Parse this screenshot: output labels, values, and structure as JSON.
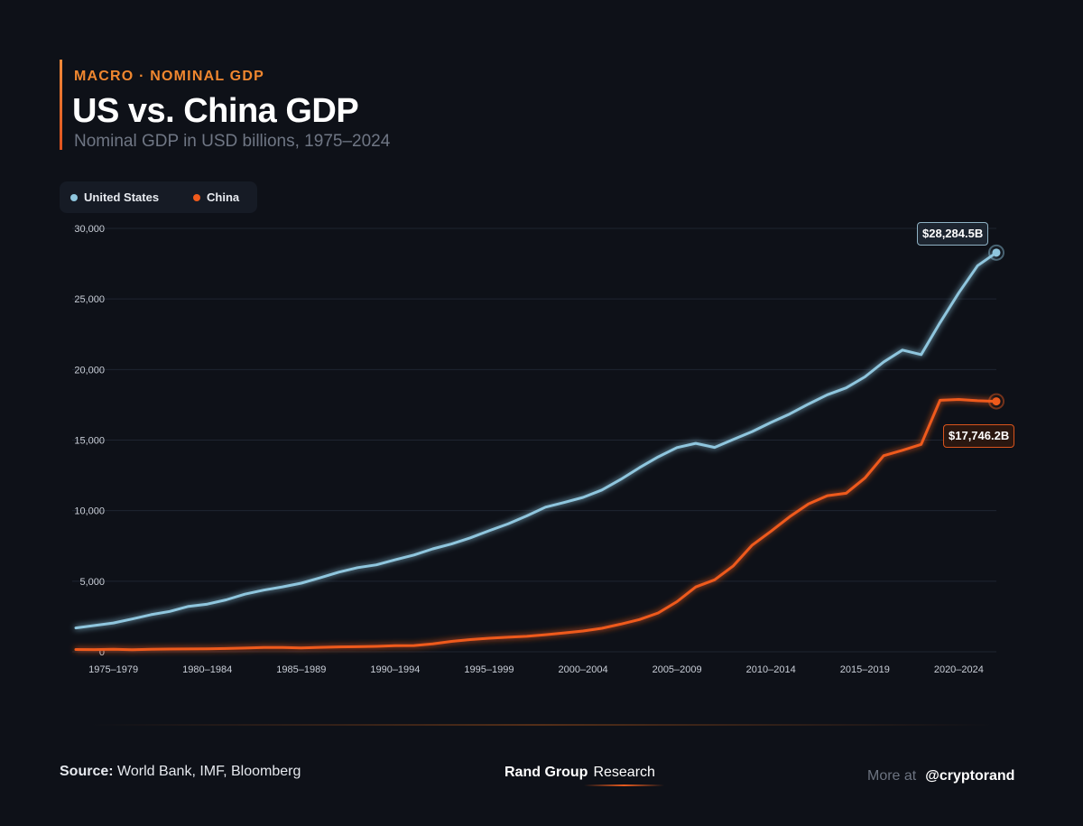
{
  "header": {
    "kicker": "MACRO · NOMINAL GDP",
    "title": "US vs. China GDP",
    "subtitle": "Nominal GDP in USD billions, 1975–2024"
  },
  "legend": {
    "us_label": "United States",
    "cn_label": "China",
    "us_color": "#8fc6de",
    "cn_color": "#ef5a1c"
  },
  "annotations": {
    "us_last": "$28,284.5B",
    "cn_last": "$17,746.2B"
  },
  "footer": {
    "source_label": "Source:",
    "source_text": "World Bank, IMF, Bloomberg",
    "brand_main": "Rand Group",
    "brand_sub": "Research",
    "more_label": "More at",
    "more_handle": "@cryptorand"
  },
  "chart_data": {
    "type": "line",
    "title": "US vs. China GDP",
    "subtitle": "Nominal GDP in USD billions, 1975–2024",
    "xlabel": "",
    "ylabel": "",
    "ylim": [
      0,
      30000
    ],
    "yticks": [
      0,
      5000,
      10000,
      15000,
      20000,
      25000,
      30000
    ],
    "ytick_labels": [
      "0",
      "5,000",
      "10,000",
      "15,000",
      "20,000",
      "25,000",
      "30,000"
    ],
    "xlim": [
      1975,
      2024
    ],
    "xtick_labels": [
      "1975–1979",
      "1980–1984",
      "1985–1989",
      "1990–1994",
      "1995–1999",
      "2000–2004",
      "2005–2009",
      "2010–2014",
      "2015–2019",
      "2020–2024"
    ],
    "xtick_centers": [
      1977,
      1982,
      1987,
      1992,
      1997,
      2002,
      2007,
      2012,
      2017,
      2022
    ],
    "grid": true,
    "legend_position": "top-left",
    "x": [
      1975,
      1976,
      1977,
      1978,
      1979,
      1980,
      1981,
      1982,
      1983,
      1984,
      1985,
      1986,
      1987,
      1988,
      1989,
      1990,
      1991,
      1992,
      1993,
      1994,
      1995,
      1996,
      1997,
      1998,
      1999,
      2000,
      2001,
      2002,
      2003,
      2004,
      2005,
      2006,
      2007,
      2008,
      2009,
      2010,
      2011,
      2012,
      2013,
      2014,
      2015,
      2016,
      2017,
      2018,
      2019,
      2020,
      2021,
      2022,
      2023,
      2024
    ],
    "series": [
      {
        "name": "United States",
        "color": "#8fc6de",
        "values": [
          1690,
          1860,
          2040,
          2320,
          2630,
          2860,
          3220,
          3380,
          3680,
          4080,
          4370,
          4600,
          4860,
          5240,
          5640,
          5960,
          6160,
          6520,
          6860,
          7290,
          7640,
          8070,
          8580,
          9060,
          9630,
          10250,
          10580,
          10940,
          11460,
          12210,
          13040,
          13810,
          14470,
          14770,
          14480,
          15050,
          15600,
          16250,
          16850,
          17550,
          18210,
          18700,
          19480,
          20530,
          21380,
          21060,
          23320,
          25440,
          27360,
          28284.5
        ]
      },
      {
        "name": "China",
        "color": "#ef5a1c",
        "values": [
          163,
          154,
          175,
          149,
          178,
          191,
          196,
          205,
          230,
          260,
          309,
          301,
          273,
          313,
          347,
          361,
          383,
          427,
          444,
          564,
          734,
          864,
          962,
          1029,
          1094,
          1211,
          1339,
          1471,
          1660,
          1955,
          2286,
          2752,
          3550,
          4594,
          5101,
          6087,
          7552,
          8532,
          9570,
          10476,
          11062,
          11233,
          12310,
          13895,
          14280,
          14690,
          17820,
          17880,
          17790,
          17746.2
        ]
      }
    ],
    "end_labels": [
      "$28,284.5B",
      "$17,746.2B"
    ]
  }
}
